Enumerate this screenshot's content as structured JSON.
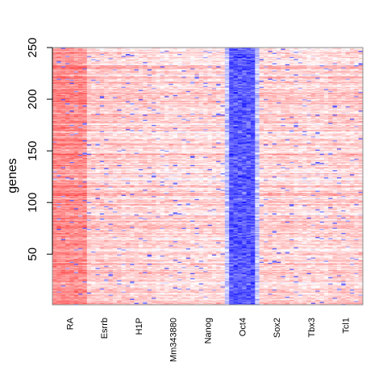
{
  "chart_data": {
    "type": "heatmap",
    "title": "",
    "xlabel": "",
    "ylabel": "genes",
    "ylim": [
      1,
      250
    ],
    "ytick_values": [
      50,
      100,
      150,
      200,
      250
    ],
    "columns": [
      "RA",
      "Esrrb",
      "H1P",
      "Mm343880",
      "Nanog",
      "Oct4",
      "Sox2",
      "Tbx3",
      "Tcl1"
    ],
    "subcolumns_per_condition": 8,
    "rows": 250,
    "value_range": [
      -1,
      1
    ],
    "color_scale": {
      "low": "#0000ff",
      "mid": "#ffffff",
      "high": "#ff0000"
    },
    "condition_profile": [
      {
        "name": "RA",
        "mean_value": 0.45
      },
      {
        "name": "Esrrb",
        "mean_value": 0.2
      },
      {
        "name": "H1P",
        "mean_value": 0.18
      },
      {
        "name": "Mm343880",
        "mean_value": 0.15
      },
      {
        "name": "Nanog",
        "mean_value": 0.15
      },
      {
        "name": "Oct4",
        "mean_value": -0.65
      },
      {
        "name": "Sox2",
        "mean_value": 0.18
      },
      {
        "name": "Tbx3",
        "mean_value": 0.15
      },
      {
        "name": "Tcl1",
        "mean_value": 0.18
      }
    ],
    "grid": false,
    "legend": "none"
  },
  "colors": {
    "axis": "#000000",
    "box": "#888888"
  }
}
